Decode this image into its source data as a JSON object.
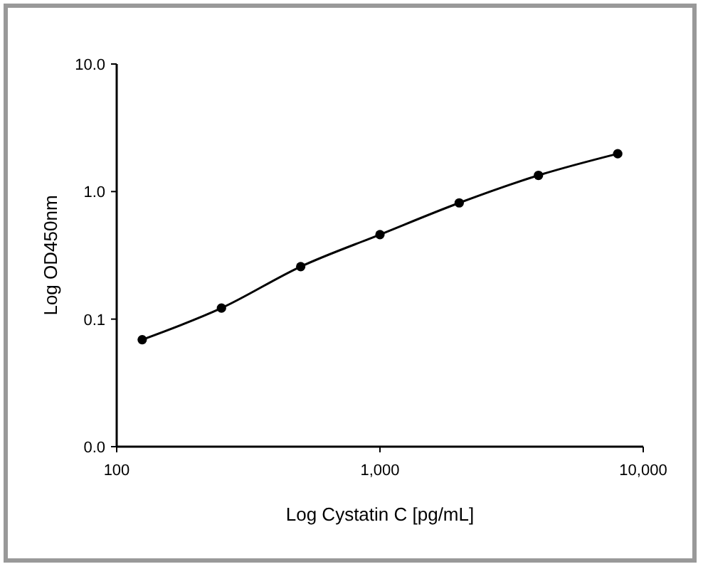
{
  "chart_data": {
    "type": "line",
    "xlabel": "Log Cystatin C [pg/mL]",
    "ylabel": "Log OD450nm",
    "log": "xy",
    "marker": "circle",
    "grid": false,
    "x": [
      125,
      250,
      500,
      1000,
      2000,
      4000,
      8000
    ],
    "series": [
      {
        "color": "#000000",
        "values": [
          0.069,
          0.122,
          0.258,
          0.46,
          0.815,
          1.34,
          1.98
        ]
      }
    ],
    "xlim": [
      100,
      10000
    ],
    "xticks": [
      100,
      {
        "value": 1000,
        "label": "1,000"
      },
      {
        "value": 10000,
        "label": "10,000"
      }
    ],
    "ylim": [
      0.01,
      10
    ],
    "yticks": [
      {
        "value": 0.01,
        "label": "0.0"
      },
      {
        "value": 0.1,
        "label": "0.1"
      },
      {
        "value": 1,
        "label": "1.0"
      },
      {
        "value": 10,
        "label": "10.0"
      }
    ]
  }
}
